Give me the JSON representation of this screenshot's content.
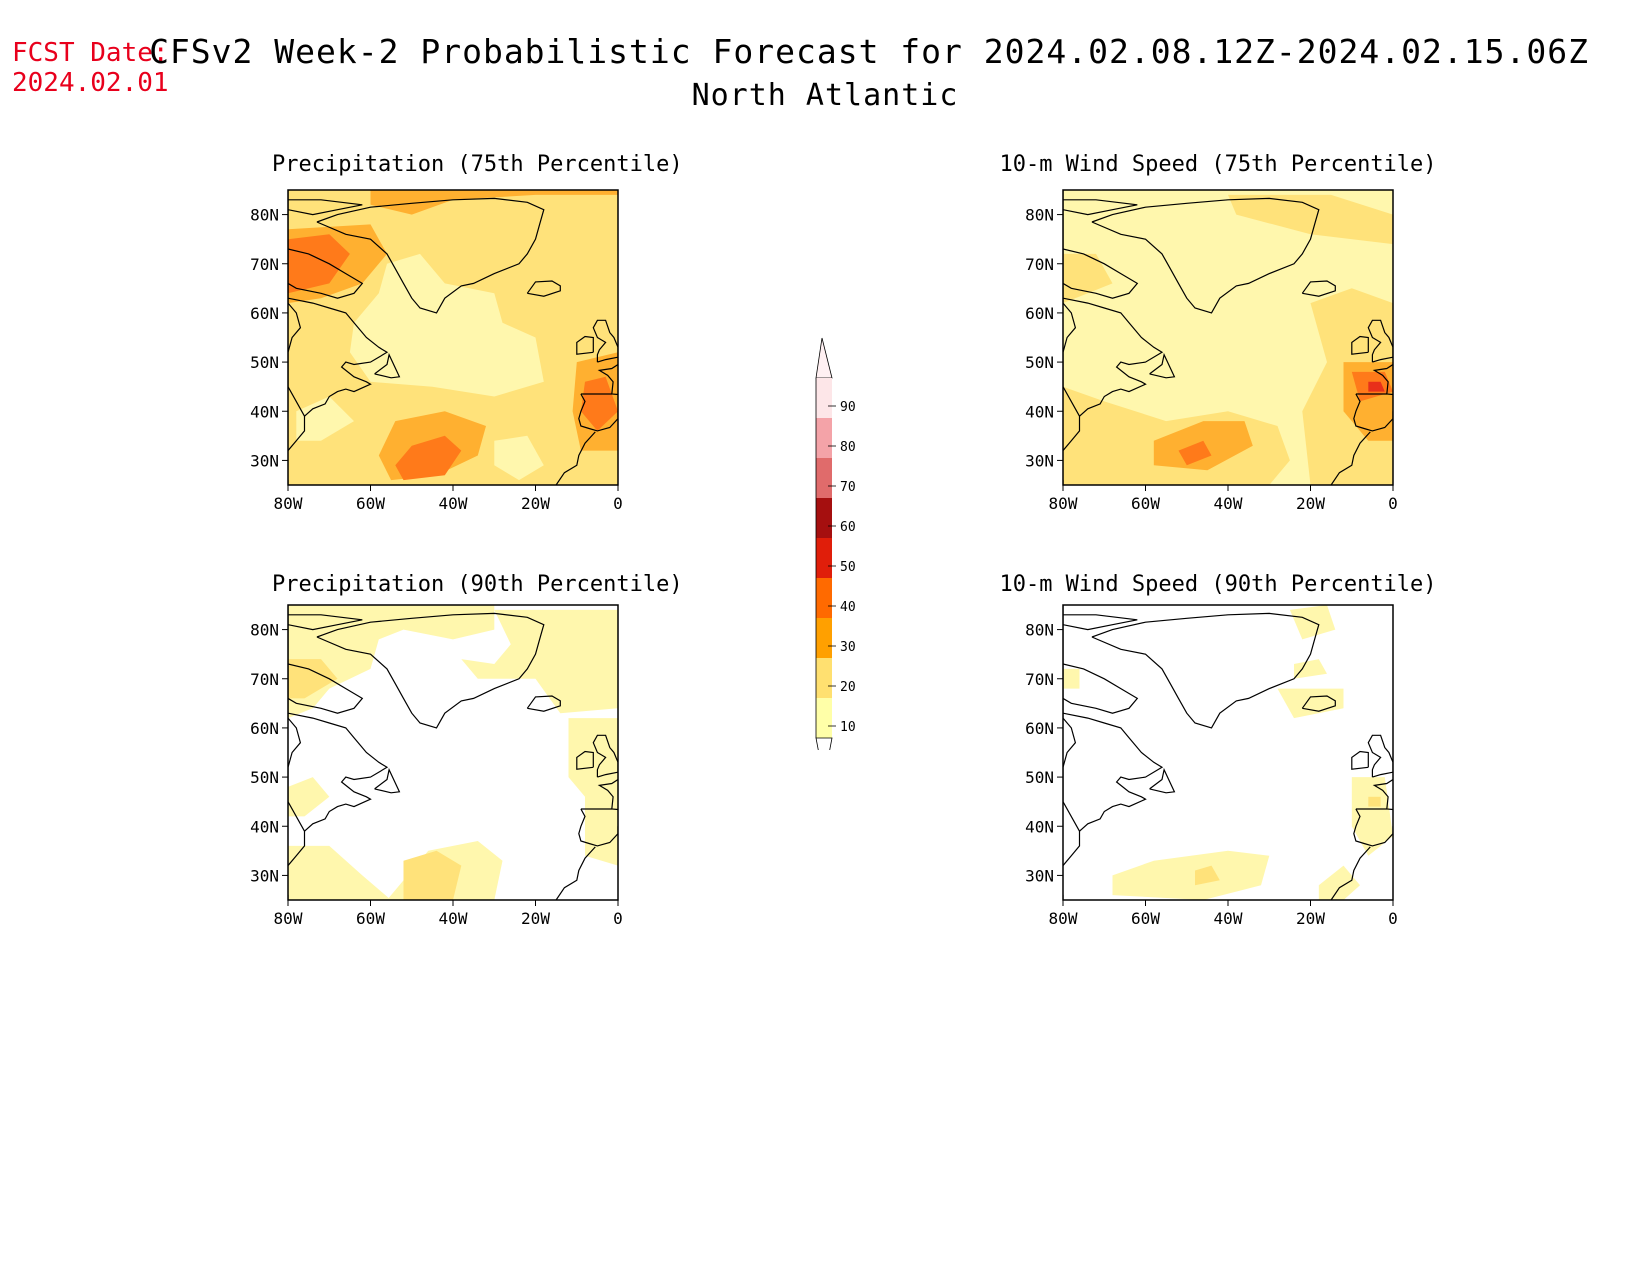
{
  "forecast_date": {
    "label": "FCST Date:",
    "value": "2024.02.01"
  },
  "title": {
    "line1": "CFSv2 Week-2 Probabilistic Forecast for 2024.02.08.12Z-2024.02.15.06Z",
    "line2": "North Atlantic"
  },
  "axes": {
    "lat_labels": [
      "80N",
      "70N",
      "60N",
      "50N",
      "40N",
      "30N"
    ],
    "lon_labels": [
      "80W",
      "60W",
      "40W",
      "20W",
      "0"
    ]
  },
  "panels": [
    {
      "id": "precip75",
      "title": "Precipitation (75th Percentile)"
    },
    {
      "id": "wind75",
      "title": "10-m Wind Speed (75th Percentile)"
    },
    {
      "id": "precip90",
      "title": "Precipitation (90th Percentile)"
    },
    {
      "id": "wind90",
      "title": "10-m Wind Speed (90th Percentile)"
    }
  ],
  "colorbar": {
    "labels": [
      "90",
      "80",
      "70",
      "60",
      "50",
      "40",
      "30",
      "20",
      "10"
    ],
    "colors": [
      "#fde6e8",
      "#f4a3a8",
      "#e06b6b",
      "#a50f0f",
      "#e01e0a",
      "#ff6a00",
      "#ffa000",
      "#ffe070",
      "#ffffa8"
    ]
  },
  "map_colors": {
    "c10": "#fff7ad",
    "c20": "#ffe27a",
    "c30": "#ffb030",
    "c40": "#ff7a1a",
    "c50": "#e8301a",
    "coast": "#000000"
  }
}
